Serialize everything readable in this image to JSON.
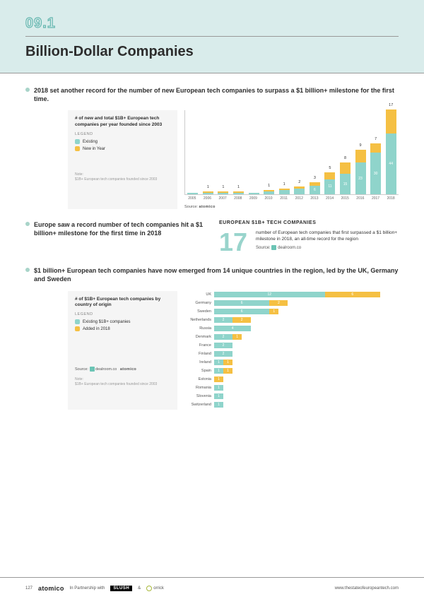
{
  "header": {
    "section_number": "09.1",
    "title": "Billion-Dollar Companies"
  },
  "colors": {
    "existing": "#8fd4cb",
    "new": "#f5c043",
    "header_bg": "#d9eceb",
    "big_num": "#99d4cc"
  },
  "block1": {
    "intro": "2018 set another record for the number of new European tech companies to surpass a $1 billion+ milestone for the first time.",
    "legend": {
      "title": "# of new and total $1B+ European tech companies per year founded since 2003",
      "label": "LEGEND",
      "items": [
        {
          "name": "Existing",
          "color": "#8fd4cb"
        },
        {
          "name": "New in Year",
          "color": "#f5c043"
        }
      ],
      "note_label": "Note:",
      "note": "$1B+ European tech companies founded since 2003"
    },
    "chart": {
      "years": [
        "2005",
        "2006",
        "2007",
        "2008",
        "2009",
        "2010",
        "2011",
        "2012",
        "2013",
        "2014",
        "2015",
        "2016",
        "2017",
        "2018"
      ],
      "existing": [
        1,
        1,
        1,
        1,
        1,
        2,
        3,
        4,
        6,
        11,
        15,
        23,
        30,
        44
      ],
      "new_in_year": [
        0,
        1,
        1,
        1,
        0,
        1,
        1,
        2,
        3,
        5,
        8,
        9,
        7,
        17
      ],
      "max": 61
    },
    "source_label": "Source:",
    "source": "atomico"
  },
  "block2": {
    "intro": "Europe saw a record number of tech companies hit a $1 billion+ milestone for the first time in 2018",
    "stat_heading": "EUROPEAN $1B+ TECH COMPANIES",
    "big_number": "17",
    "stat_desc": "number of European tech companies that first surpassed a $1 billion+ milestone in 2018, an all-time record for the region",
    "source_label": "Source:",
    "source": "dealroom.co"
  },
  "block3": {
    "intro": "$1 billion+ European tech companies have now emerged from 14 unique countries in the region, led by the UK, Germany and Sweden",
    "legend": {
      "title": "# of $1B+ European tech companies by country of origin",
      "label": "LEGEND",
      "items": [
        {
          "name": "Existing $1B+ companies",
          "color": "#8fd4cb"
        },
        {
          "name": "Added in 2018",
          "color": "#f5c043"
        }
      ],
      "note_label": "Note:",
      "note": "$1B+ European tech companies founded since 2003",
      "source_label": "Source:"
    },
    "chart": {
      "max": 20,
      "countries": [
        {
          "name": "UK",
          "existing": 12,
          "added": 6
        },
        {
          "name": "Germany",
          "existing": 6,
          "added": 2
        },
        {
          "name": "Sweden",
          "existing": 6,
          "added": 1
        },
        {
          "name": "Netherlands",
          "existing": 2,
          "added": 2
        },
        {
          "name": "Russia",
          "existing": 4,
          "added": 0
        },
        {
          "name": "Denmark",
          "existing": 2,
          "added": 1
        },
        {
          "name": "France",
          "existing": 2,
          "added": 0
        },
        {
          "name": "Finland",
          "existing": 2,
          "added": 0
        },
        {
          "name": "Ireland",
          "existing": 1,
          "added": 1
        },
        {
          "name": "Spain",
          "existing": 1,
          "added": 1
        },
        {
          "name": "Estonia",
          "existing": 0,
          "added": 1
        },
        {
          "name": "Romania",
          "existing": 1,
          "added": 0
        },
        {
          "name": "Slovenia",
          "existing": 1,
          "added": 0
        },
        {
          "name": "Switzerland",
          "existing": 1,
          "added": 0
        }
      ]
    }
  },
  "footer": {
    "page": "127",
    "atomico": "atomico",
    "partnership": "In Partnership with",
    "slush": "SLUSH",
    "amp": "&",
    "orrick": "orrick",
    "url": "www.thestateofeuropeantech.com"
  }
}
